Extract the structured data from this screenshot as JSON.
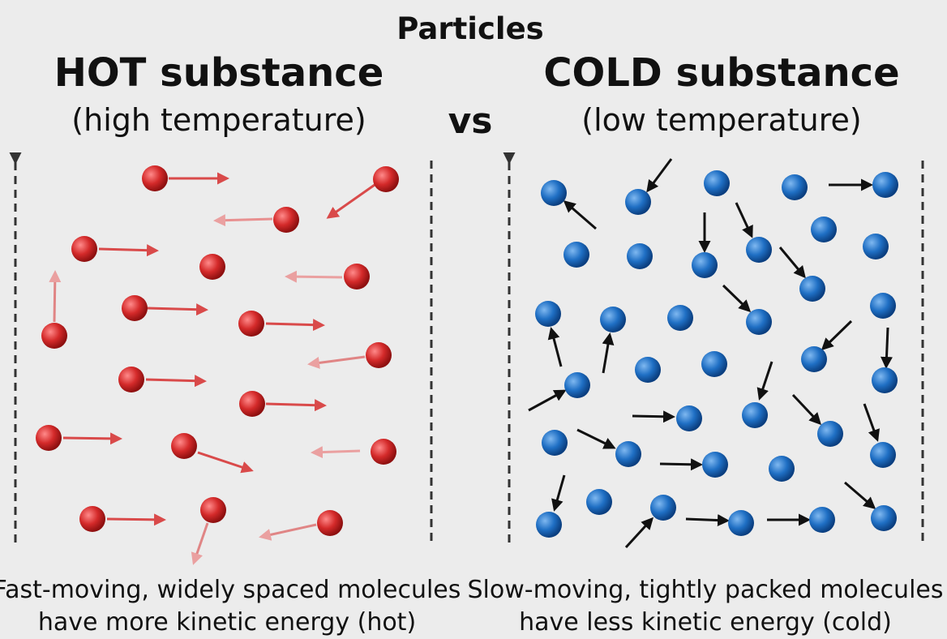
{
  "title": "Particles",
  "vs_label": "vs",
  "hot": {
    "heading": "HOT substance",
    "subheading": "(high temperature)",
    "caption_line1": "Fast-moving, widely spaced molecules",
    "caption_line2": "have more kinetic energy (hot)",
    "particle_color": "#d42a2a",
    "arrow_color": "#d94a4a"
  },
  "cold": {
    "heading": "COLD substance",
    "subheading": "(low temperature)",
    "caption_line1": "Slow-moving, tightly packed molecules",
    "caption_line2": "have less kinetic energy (cold)",
    "particle_color": "#1f6fc4",
    "arrow_color": "#111111"
  },
  "icons": {
    "container_wall": "dashed-line-icon",
    "hot_particle": "red-sphere-icon",
    "cold_particle": "blue-sphere-icon",
    "motion": "arrow-icon"
  }
}
